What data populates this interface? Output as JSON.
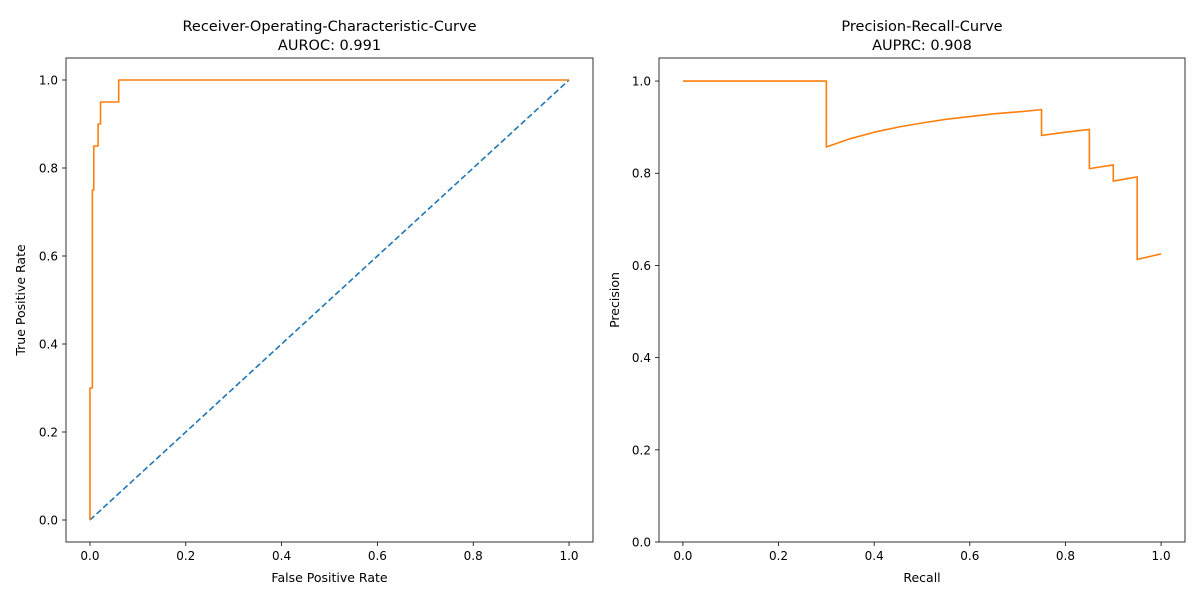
{
  "figure": {
    "colors": {
      "curve": "#ff7f0e",
      "diagonal": "#1f77b4",
      "axes": "#000000",
      "background": "#ffffff"
    }
  },
  "chart_data": [
    {
      "type": "line",
      "title": "Receiver-Operating-Characteristic-Curve",
      "subtitle": "AUROC: 0.991",
      "xlabel": "False Positive Rate",
      "ylabel": "True Positive Rate",
      "xlim": [
        -0.05,
        1.05
      ],
      "ylim": [
        -0.05,
        1.05
      ],
      "xticks": [
        0.0,
        0.2,
        0.4,
        0.6,
        0.8,
        1.0
      ],
      "yticks": [
        0.0,
        0.2,
        0.4,
        0.6,
        0.8,
        1.0
      ],
      "xtick_labels": [
        "0.0",
        "0.2",
        "0.4",
        "0.6",
        "0.8",
        "1.0"
      ],
      "ytick_labels": [
        "0.0",
        "0.2",
        "0.4",
        "0.6",
        "0.8",
        "1.0"
      ],
      "grid": false,
      "legend": "none",
      "series": [
        {
          "color": "#ff7f0e",
          "style": "solid",
          "x": [
            0.0,
            0.0,
            0.005,
            0.005,
            0.008,
            0.008,
            0.017,
            0.017,
            0.022,
            0.022,
            0.06,
            0.06,
            1.0
          ],
          "y": [
            0.0,
            0.3,
            0.3,
            0.75,
            0.75,
            0.85,
            0.85,
            0.9,
            0.9,
            0.95,
            0.95,
            1.0,
            1.0
          ]
        },
        {
          "color": "#1f77b4",
          "style": "dashed",
          "x": [
            0.0,
            1.0
          ],
          "y": [
            0.0,
            1.0
          ]
        }
      ]
    },
    {
      "type": "line",
      "title": "Precision-Recall-Curve",
      "subtitle": "AUPRC: 0.908",
      "xlabel": "Recall",
      "ylabel": "Precision",
      "xlim": [
        -0.05,
        1.05
      ],
      "ylim": [
        0.0,
        1.05
      ],
      "xticks": [
        0.0,
        0.2,
        0.4,
        0.6,
        0.8,
        1.0
      ],
      "yticks": [
        0.0,
        0.2,
        0.4,
        0.6,
        0.8,
        1.0
      ],
      "xtick_labels": [
        "0.0",
        "0.2",
        "0.4",
        "0.6",
        "0.8",
        "1.0"
      ],
      "ytick_labels": [
        "0.0",
        "0.2",
        "0.4",
        "0.6",
        "0.8",
        "1.0"
      ],
      "grid": false,
      "legend": "none",
      "series": [
        {
          "color": "#ff7f0e",
          "style": "solid",
          "x": [
            0.0,
            0.3,
            0.3,
            0.35,
            0.4,
            0.45,
            0.5,
            0.55,
            0.6,
            0.65,
            0.7,
            0.75,
            0.75,
            0.8,
            0.85,
            0.85,
            0.9,
            0.9,
            0.95,
            0.95,
            1.0
          ],
          "y": [
            1.0,
            1.0,
            0.857,
            0.875,
            0.889,
            0.9,
            0.909,
            0.917,
            0.923,
            0.929,
            0.933,
            0.938,
            0.882,
            0.889,
            0.895,
            0.81,
            0.818,
            0.783,
            0.792,
            0.613,
            0.625
          ]
        }
      ]
    }
  ]
}
